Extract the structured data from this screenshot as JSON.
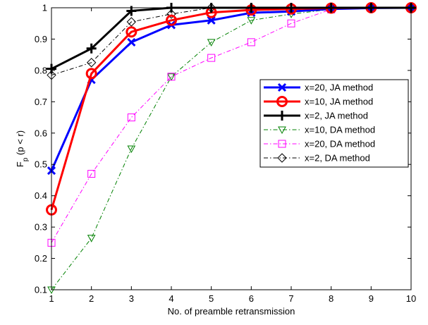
{
  "chart_data": {
    "type": "line",
    "title": "",
    "xlabel": "No. of preamble retransmission",
    "ylabel_main": "F",
    "ylabel_sub": "p",
    "ylabel_rest": " (p < r)",
    "xlim": [
      1,
      10
    ],
    "ylim": [
      0.1,
      1.0
    ],
    "xticks": [
      1,
      2,
      3,
      4,
      5,
      6,
      7,
      8,
      9,
      10
    ],
    "yticks": [
      0.1,
      0.2,
      0.3,
      0.4,
      0.5,
      0.6,
      0.7,
      0.8,
      0.9,
      1
    ],
    "grid": false,
    "legend_position": "right",
    "x": [
      1,
      2,
      3,
      4,
      5,
      6,
      7,
      8,
      9,
      10
    ],
    "series": [
      {
        "name": "x=20, JA method",
        "color": "#0000ff",
        "marker": "x",
        "style": "solid",
        "bold": true,
        "values": [
          0.48,
          0.77,
          0.89,
          0.945,
          0.96,
          0.984,
          0.988,
          0.996,
          0.999,
          1.0
        ]
      },
      {
        "name": "x=10, JA method",
        "color": "#ff0000",
        "marker": "o",
        "style": "solid",
        "bold": true,
        "values": [
          0.355,
          0.79,
          0.923,
          0.96,
          0.985,
          0.993,
          0.996,
          0.999,
          1.0,
          1.0
        ]
      },
      {
        "name": "x=2, JA method",
        "color": "#000000",
        "marker": "+",
        "style": "solid",
        "bold": true,
        "values": [
          0.805,
          0.87,
          0.99,
          1.0,
          1.0,
          1.0,
          1.0,
          1.0,
          1.0,
          1.0
        ]
      },
      {
        "name": "x=10, DA method",
        "color": "#008000",
        "marker": "triangle-down",
        "style": "dashdot",
        "bold": false,
        "values": [
          0.1,
          0.265,
          0.55,
          0.78,
          0.89,
          0.96,
          0.98,
          0.995,
          1.0,
          1.0
        ]
      },
      {
        "name": "x=20, DA method",
        "color": "#ff00ff",
        "marker": "square",
        "style": "dashdot",
        "bold": false,
        "values": [
          0.25,
          0.47,
          0.65,
          0.78,
          0.84,
          0.89,
          0.95,
          0.995,
          1.0,
          1.0
        ]
      },
      {
        "name": "x=2, DA method",
        "color": "#000000",
        "marker": "diamond",
        "style": "dashdot",
        "bold": false,
        "values": [
          0.785,
          0.825,
          0.955,
          0.98,
          1.0,
          1.0,
          1.0,
          1.0,
          1.0,
          1.0
        ]
      }
    ]
  }
}
